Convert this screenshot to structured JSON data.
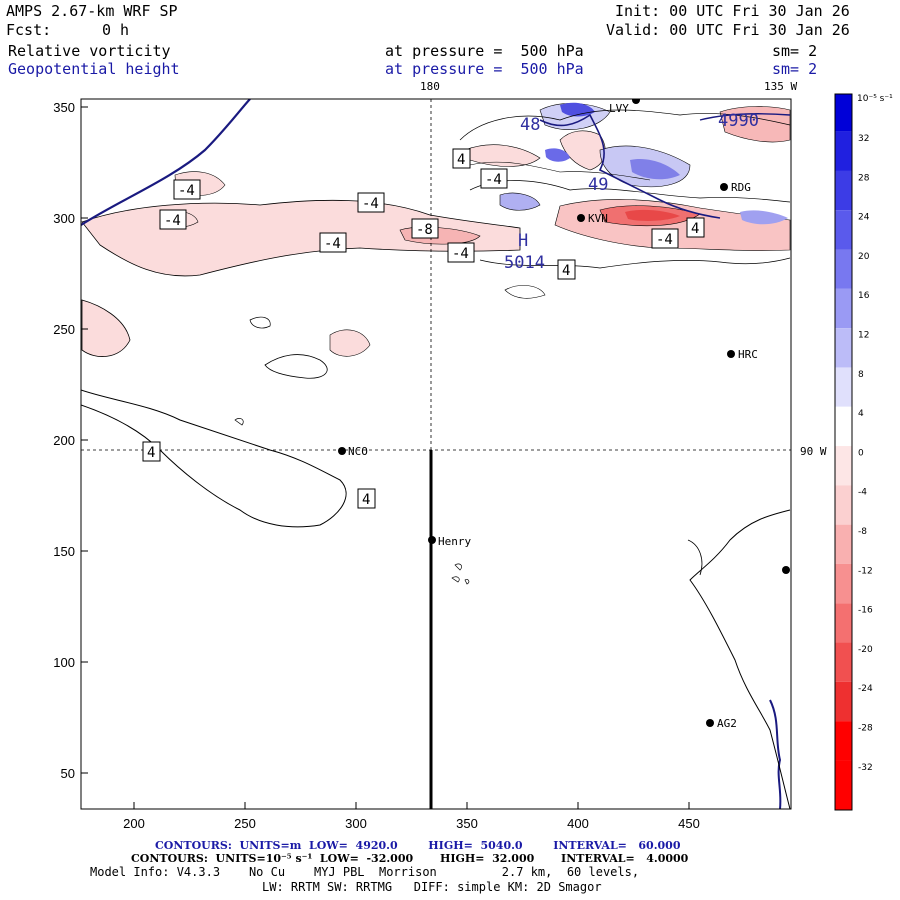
{
  "header": {
    "model": "AMPS 2.67-km WRF SP",
    "fcst_label": "Fcst:",
    "fcst_value": "0 h",
    "init": "Init: 00 UTC Fri 30 Jan 26",
    "valid": "Valid: 00 UTC Fri 30 Jan 26",
    "field1": "Relative vorticity",
    "field1_level": "at pressure =  500 hPa",
    "field1_sm": "sm= 2",
    "field2": "Geopotential height",
    "field2_level": "at pressure =  500 hPa",
    "field2_sm": "sm= 2"
  },
  "map": {
    "meridian_labels": [
      "180",
      "135 W"
    ],
    "parallel_label": "90 W",
    "x_ticks": [
      "200",
      "250",
      "300",
      "350",
      "400",
      "450"
    ],
    "y_ticks": [
      "350",
      "300",
      "250",
      "200",
      "150",
      "100",
      "50"
    ],
    "stations": [
      "NCO",
      "Henry",
      "HRC",
      "AG2",
      "RDG",
      "KVN",
      "LVY"
    ],
    "contour_labels": [
      "-4",
      "-4",
      "-4",
      "-4",
      "-8",
      "-4",
      "4",
      "-4",
      "4",
      "-4",
      "4",
      "4",
      "4"
    ],
    "height_labels": [
      "5014",
      "4990",
      "48",
      "49"
    ],
    "h_marker": "H"
  },
  "colorbar": {
    "unit": "10⁻⁵ s⁻¹",
    "ticks": [
      "32",
      "28",
      "24",
      "20",
      "16",
      "12",
      "8",
      "4",
      "0",
      "-4",
      "-8",
      "-12",
      "-16",
      "-20",
      "-24",
      "-28",
      "-32"
    ],
    "colors": [
      "#0000d8",
      "#2020e0",
      "#3c3ce6",
      "#5a5aec",
      "#7878f0",
      "#9a9af4",
      "#bcbcf8",
      "#e0e0fc",
      "#ffffff",
      "#fde6e6",
      "#fbd0d0",
      "#f9b0b0",
      "#f79090",
      "#f47070",
      "#f15050",
      "#ee3030",
      "#ff0000"
    ]
  },
  "footer": {
    "line1": "CONTOURS:  UNITS=m  LOW=  4920.0        HIGH=  5040.0        INTERVAL=   60.000",
    "line2": "CONTOURS:  UNITS=10⁻⁵ s⁻¹  LOW=  -32.000       HIGH=  32.000       INTERVAL=   4.0000",
    "line3": "Model Info: V4.3.3    No Cu    MYJ PBL  Morrison         2.7 km,  60 levels,",
    "line4": "LW: RRTM SW: RRTMG   DIFF: simple KM: 2D Smagor"
  }
}
